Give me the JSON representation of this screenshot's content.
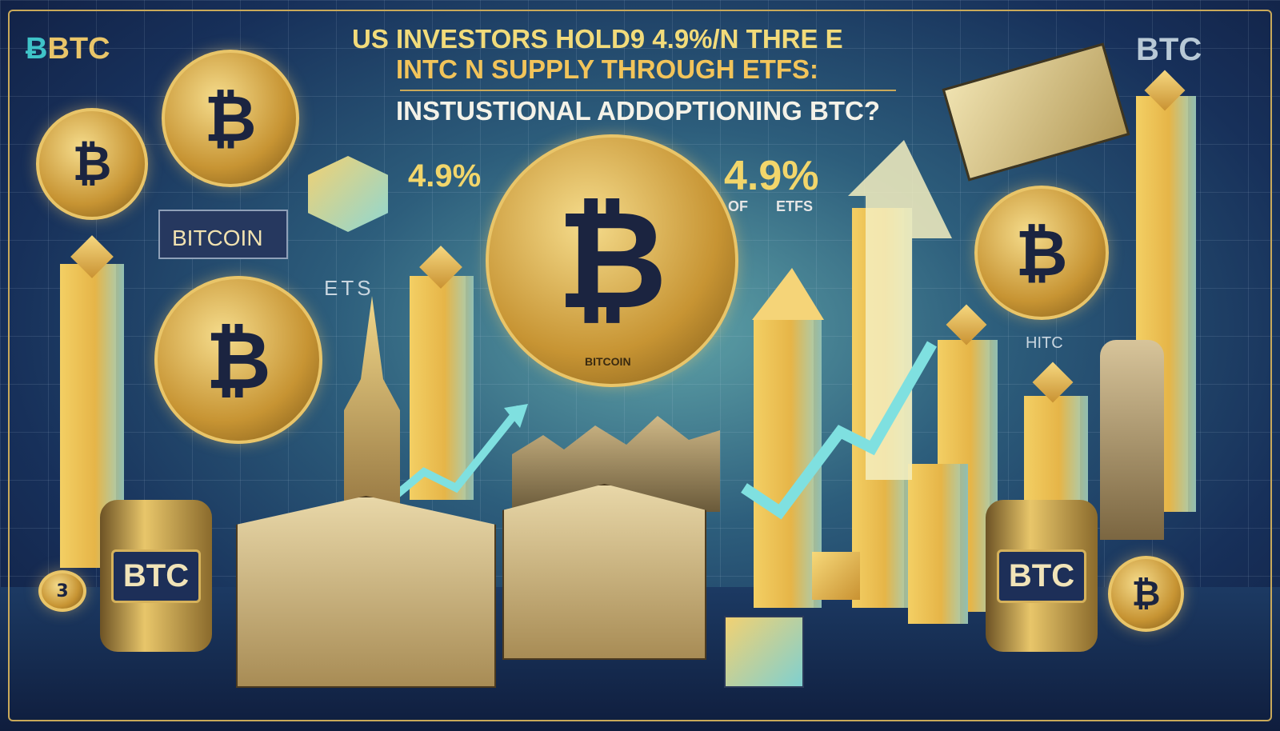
{
  "header": {
    "logo_left": "BTC",
    "logo_right": "BTC",
    "title_line1": "US INVESTORS HOLD9 4.9%/N THRE  E",
    "title_line2": "INTC      N  SUPPLY THROUGH ETFS:",
    "title_line3": "INSTUSTIONAL ADDOPTIONING BTC?"
  },
  "labels": {
    "stat_left": "4.9%",
    "stat_right": "4.9%",
    "stat_right_caption": "OF ETFS",
    "bitcoin_sign": "BITCOIN",
    "ets_label": "ETS",
    "hitc_label": "HITC",
    "center_coin_text": "BITCOIN",
    "barrel_left": "BTC",
    "barrel_right": "BTC",
    "small_coin": "3"
  },
  "colors": {
    "gold": "#e9c569",
    "navy": "#13224a",
    "teal": "#5fa3a8"
  },
  "icons": [
    "bitcoin-coin-icon",
    "bar-chart-icon",
    "trend-arrow-icon",
    "bank-building-icon",
    "banknote-icon",
    "cube-icon"
  ]
}
